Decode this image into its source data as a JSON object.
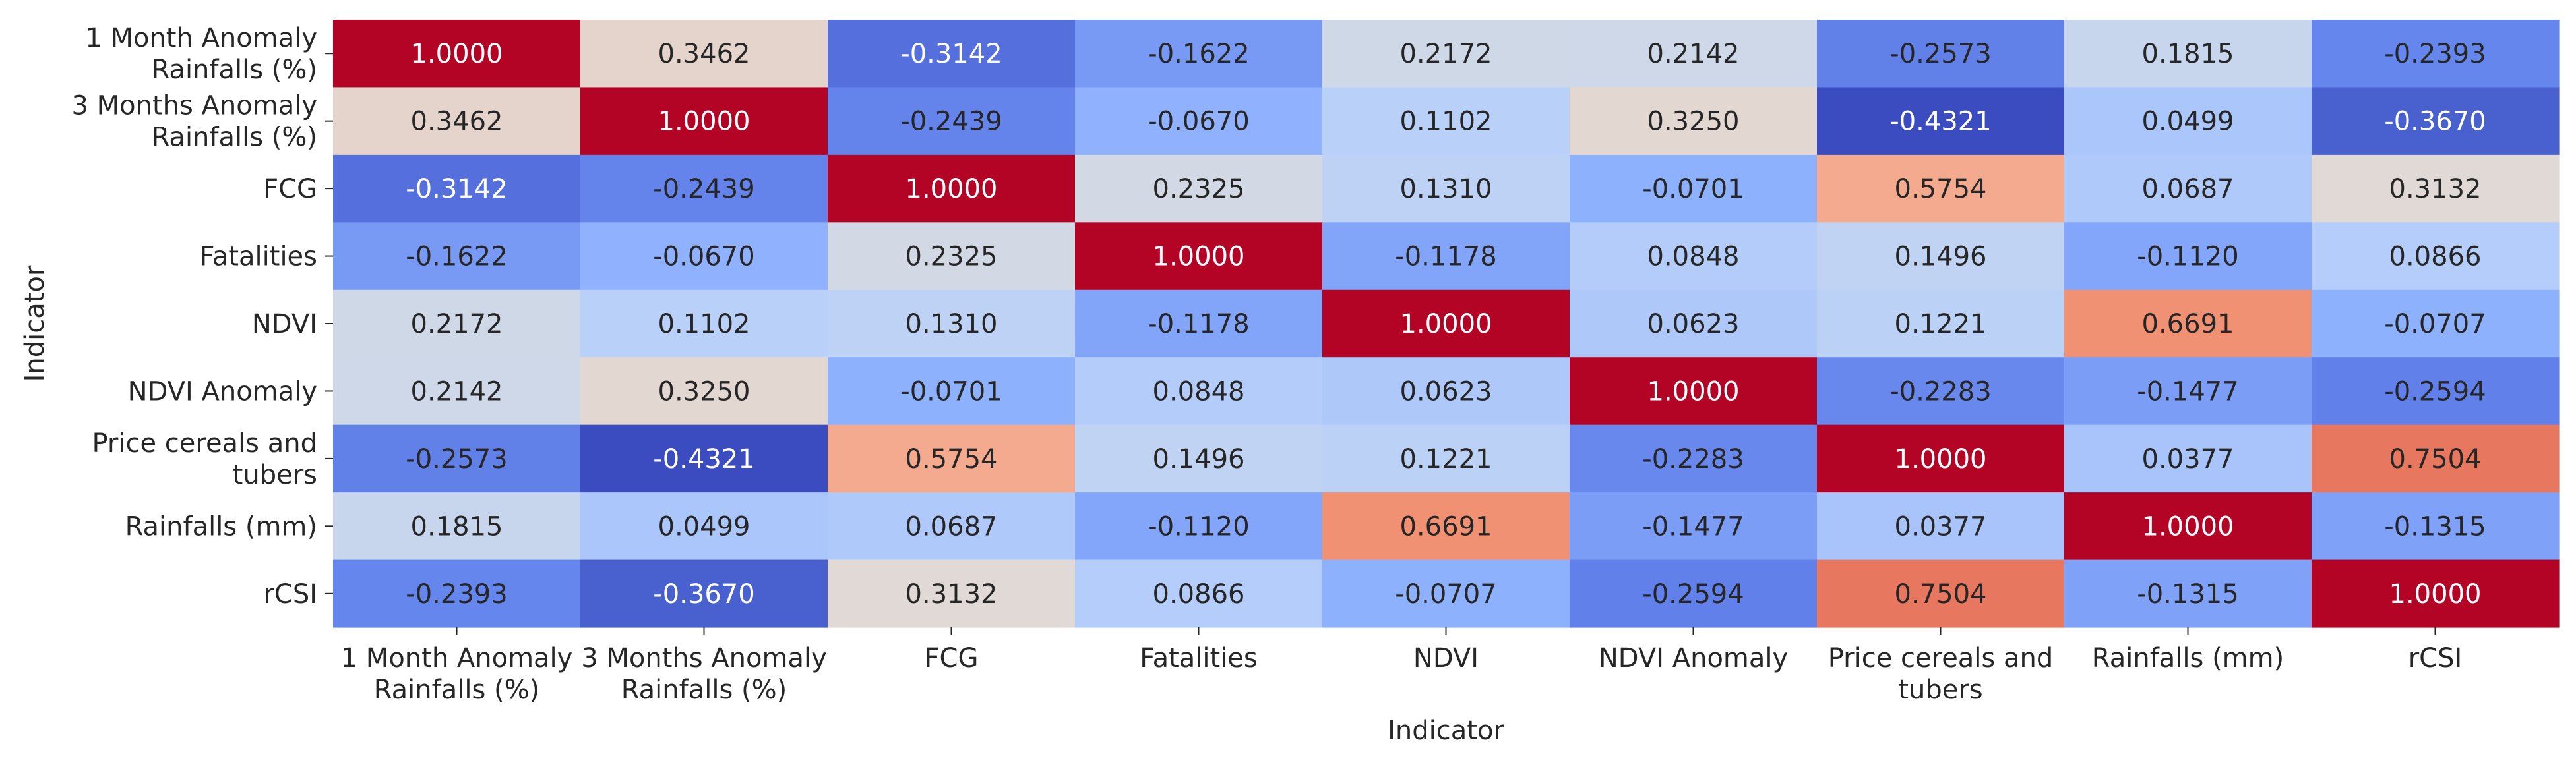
{
  "chart_data": {
    "type": "heatmap",
    "title": "",
    "xlabel": "Indicator",
    "ylabel": "Indicator",
    "colormap": "coolwarm",
    "value_range": [
      -1,
      1
    ],
    "value_format": "4 decimals",
    "colorbar": false,
    "grid": false,
    "labels": [
      [
        "1 Month Anomaly",
        "Rainfalls (%)"
      ],
      [
        "3 Months Anomaly",
        "Rainfalls (%)"
      ],
      [
        "FCG"
      ],
      [
        "Fatalities"
      ],
      [
        "NDVI"
      ],
      [
        "NDVI Anomaly"
      ],
      [
        "Price cereals and",
        "tubers"
      ],
      [
        "Rainfalls (mm)"
      ],
      [
        "rCSI"
      ]
    ],
    "matrix": [
      [
        1.0,
        0.3462,
        -0.3142,
        -0.1622,
        0.2172,
        0.2142,
        -0.2573,
        0.1815,
        -0.2393
      ],
      [
        0.3462,
        1.0,
        -0.2439,
        -0.067,
        0.1102,
        0.325,
        -0.4321,
        0.0499,
        -0.367
      ],
      [
        -0.3142,
        -0.2439,
        1.0,
        0.2325,
        0.131,
        -0.0701,
        0.5754,
        0.0687,
        0.3132
      ],
      [
        -0.1622,
        -0.067,
        0.2325,
        1.0,
        -0.1178,
        0.0848,
        0.1496,
        -0.112,
        0.0866
      ],
      [
        0.2172,
        0.1102,
        0.131,
        -0.1178,
        1.0,
        0.0623,
        0.1221,
        0.6691,
        -0.0707
      ],
      [
        0.2142,
        0.325,
        -0.0701,
        0.0848,
        0.0623,
        1.0,
        -0.2283,
        -0.1477,
        -0.2594
      ],
      [
        -0.2573,
        -0.4321,
        0.5754,
        0.1496,
        0.1221,
        -0.2283,
        1.0,
        0.0377,
        0.7504
      ],
      [
        0.1815,
        0.0499,
        0.0687,
        -0.112,
        0.6691,
        -0.1477,
        0.0377,
        1.0,
        -0.1315
      ],
      [
        -0.2393,
        -0.367,
        0.3132,
        0.0866,
        -0.0707,
        -0.2594,
        0.7504,
        -0.1315,
        1.0
      ]
    ]
  }
}
